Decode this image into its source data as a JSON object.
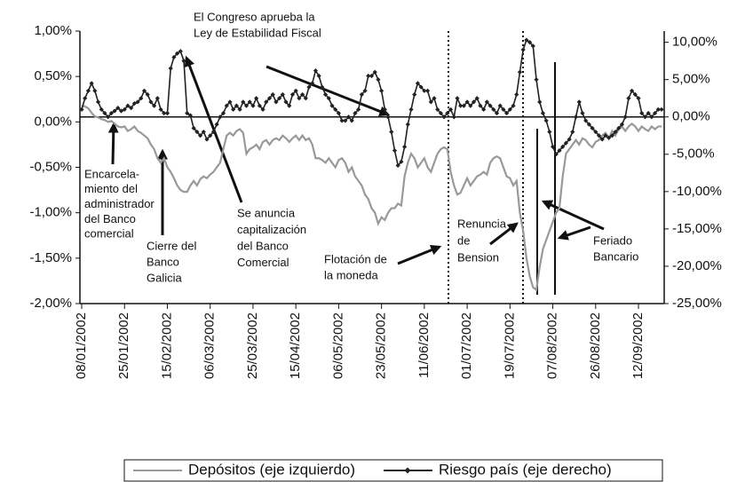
{
  "chart_data": {
    "type": "line",
    "categories": [
      "08/01/2002",
      null,
      null,
      null,
      null,
      null,
      null,
      null,
      null,
      null,
      null,
      null,
      null,
      "25/01/2002",
      null,
      null,
      null,
      null,
      null,
      null,
      null,
      null,
      null,
      null,
      null,
      null,
      "15/02/2002",
      null,
      null,
      null,
      null,
      null,
      null,
      null,
      null,
      null,
      null,
      null,
      null,
      "06/03/2002",
      null,
      null,
      null,
      null,
      null,
      null,
      null,
      null,
      null,
      null,
      null,
      null,
      "25/03/2002",
      null,
      null,
      null,
      null,
      null,
      null,
      null,
      null,
      null,
      null,
      null,
      null,
      "15/04/2002",
      null,
      null,
      null,
      null,
      null,
      null,
      null,
      null,
      null,
      null,
      null,
      null,
      "06/05/2002",
      null,
      null,
      null,
      null,
      null,
      null,
      null,
      null,
      null,
      null,
      null,
      null,
      "23/05/2002",
      null,
      null,
      null,
      null,
      null,
      null,
      null,
      null,
      null,
      null,
      null,
      null,
      "11/06/2002",
      null,
      null,
      null,
      null,
      null,
      null,
      null,
      null,
      null,
      null,
      null,
      null,
      "01/07/2002",
      null,
      null,
      null,
      null,
      null,
      null,
      null,
      null,
      null,
      null,
      null,
      null,
      "19/07/2002",
      null,
      null,
      null,
      null,
      null,
      null,
      null,
      null,
      null,
      null,
      null,
      null,
      "07/08/2002",
      null,
      null,
      null,
      null,
      null,
      null,
      null,
      null,
      null,
      null,
      null,
      null,
      "26/08/2002",
      null,
      null,
      null,
      null,
      null,
      null,
      null,
      null,
      null,
      null,
      null,
      null,
      "12/09/2002",
      null,
      null,
      null,
      null,
      null,
      null,
      null
    ],
    "series": [
      {
        "name": "Depósitos (eje izquierdo)",
        "color": "#999999",
        "axis": "y",
        "values": [
          0.18,
          0.17,
          0.15,
          0.1,
          0.06,
          0.05,
          0.03,
          0.02,
          0.0,
          0.01,
          -0.02,
          -0.05,
          -0.06,
          -0.05,
          -0.1,
          -0.08,
          -0.05,
          -0.1,
          -0.12,
          -0.15,
          -0.18,
          -0.25,
          -0.3,
          -0.4,
          -0.45,
          -0.4,
          -0.5,
          -0.55,
          -0.62,
          -0.7,
          -0.75,
          -0.77,
          -0.77,
          -0.7,
          -0.65,
          -0.7,
          -0.63,
          -0.6,
          -0.62,
          -0.58,
          -0.55,
          -0.5,
          -0.45,
          -0.3,
          -0.15,
          -0.12,
          -0.15,
          -0.1,
          -0.08,
          -0.12,
          -0.35,
          -0.3,
          -0.28,
          -0.25,
          -0.3,
          -0.22,
          -0.2,
          -0.25,
          -0.2,
          -0.18,
          -0.2,
          -0.15,
          -0.18,
          -0.22,
          -0.18,
          -0.15,
          -0.2,
          -0.15,
          -0.2,
          -0.18,
          -0.25,
          -0.4,
          -0.4,
          -0.42,
          -0.45,
          -0.4,
          -0.45,
          -0.5,
          -0.42,
          -0.4,
          -0.45,
          -0.55,
          -0.5,
          -0.6,
          -0.65,
          -0.7,
          -0.8,
          -0.85,
          -0.95,
          -1.0,
          -1.12,
          -1.05,
          -1.08,
          -1.0,
          -0.95,
          -0.95,
          -0.9,
          -0.92,
          -0.6,
          -0.45,
          -0.35,
          -0.4,
          -0.5,
          -0.45,
          -0.4,
          -0.5,
          -0.55,
          -0.45,
          -0.35,
          -0.3,
          -0.28,
          -0.3,
          -0.55,
          -0.7,
          -0.8,
          -0.78,
          -0.7,
          -0.62,
          -0.7,
          -0.65,
          -0.6,
          -0.58,
          -0.55,
          -0.58,
          -0.45,
          -0.4,
          -0.38,
          -0.4,
          -0.5,
          -0.6,
          -0.62,
          -0.7,
          -0.65,
          -1.0,
          -1.2,
          -1.5,
          -1.7,
          -1.82,
          -1.85,
          -1.6,
          -1.4,
          -1.3,
          -1.2,
          -1.1,
          -1.0,
          -0.95,
          -0.6,
          -0.35,
          -0.3,
          -0.25,
          -0.2,
          -0.25,
          -0.18,
          -0.2,
          -0.25,
          -0.28,
          -0.22,
          -0.2,
          -0.15,
          -0.12,
          -0.18,
          -0.1,
          -0.15,
          -0.08,
          -0.05,
          -0.1,
          -0.05,
          -0.02,
          -0.05,
          -0.1,
          -0.05,
          -0.08,
          -0.1,
          -0.05,
          -0.08,
          -0.05,
          -0.05
        ]
      },
      {
        "name": "Riesgo país (eje derecho)",
        "color": "#222222",
        "axis": "y2",
        "values": [
          1.0,
          2.5,
          3.5,
          4.5,
          3.5,
          2.0,
          1.0,
          0.5,
          0.0,
          0.5,
          0.8,
          1.2,
          0.8,
          1.0,
          1.5,
          1.2,
          1.8,
          2.0,
          2.5,
          3.5,
          3.0,
          2.0,
          1.5,
          2.5,
          1.0,
          0.5,
          0.5,
          6.5,
          8.0,
          8.5,
          8.8,
          7.5,
          0.5,
          0.2,
          -1.5,
          -2.0,
          -2.5,
          -2.0,
          -3.0,
          -2.5,
          -2.0,
          -1.0,
          0.0,
          0.5,
          1.5,
          2.0,
          1.0,
          1.5,
          1.0,
          2.0,
          1.5,
          2.0,
          1.5,
          2.5,
          1.5,
          1.0,
          2.0,
          2.5,
          3.0,
          2.0,
          2.5,
          3.0,
          2.0,
          1.5,
          3.0,
          3.5,
          2.5,
          3.0,
          2.5,
          4.0,
          4.5,
          6.2,
          5.5,
          4.0,
          3.0,
          2.5,
          1.5,
          1.0,
          0.5,
          -0.5,
          -0.5,
          0.0,
          -0.5,
          0.5,
          1.0,
          3.0,
          3.5,
          5.5,
          5.5,
          6.0,
          5.0,
          3.5,
          1.0,
          0.0,
          -2.0,
          -4.5,
          -6.5,
          -6.0,
          -4.0,
          -1.0,
          1.0,
          3.0,
          4.5,
          4.0,
          3.5,
          3.5,
          2.0,
          2.5,
          1.0,
          0.5,
          0.0,
          0.5,
          1.0,
          0.0,
          2.5,
          1.5,
          1.5,
          2.0,
          1.5,
          2.0,
          2.5,
          1.5,
          1.0,
          2.0,
          1.5,
          1.0,
          0.5,
          1.5,
          1.0,
          0.5,
          1.0,
          1.5,
          3.0,
          6.0,
          9.0,
          10.3,
          10.0,
          9.5,
          5.0,
          2.0,
          0.5,
          -0.5,
          -2.0,
          -4.0,
          -5.0,
          -4.5,
          -4.0,
          -3.5,
          -3.0,
          -2.0,
          0.0,
          2.0,
          0.5,
          -0.5,
          -1.0,
          -1.5,
          -2.0,
          -2.5,
          -3.0,
          -2.5,
          -2.8,
          -2.5,
          -2.0,
          -1.5,
          -1.0,
          0.0,
          2.5,
          3.5,
          3.0,
          2.5,
          0.5,
          0.0,
          0.5,
          0.0,
          0.5,
          1.0,
          1.0
        ]
      }
    ],
    "ylim": [
      -2,
      1
    ],
    "yticks": [
      {
        "value": -2,
        "label": "-2,00%"
      },
      {
        "value": -1.5,
        "label": "-1,50%"
      },
      {
        "value": -1,
        "label": "-1,00%"
      },
      {
        "value": -0.5,
        "label": "-0,50%"
      },
      {
        "value": 0,
        "label": "0,00%"
      },
      {
        "value": 0.5,
        "label": "0,50%"
      },
      {
        "value": 1,
        "label": "1,00%"
      }
    ],
    "y2lim": [
      -25,
      11.5
    ],
    "y2ticks": [
      {
        "value": -25,
        "label": "-25,00%"
      },
      {
        "value": -20,
        "label": "-20,00%"
      },
      {
        "value": -15,
        "label": "-15,00%"
      },
      {
        "value": -10,
        "label": "-10,00%"
      },
      {
        "value": -5,
        "label": "-5,00%"
      },
      {
        "value": 0,
        "label": "0,00%"
      },
      {
        "value": 5,
        "label": "5,00%"
      },
      {
        "value": 10,
        "label": "10,00%"
      }
    ],
    "grid": false,
    "legend": "bottom",
    "annotations": [
      [
        "El Congreso aprueba la",
        "Ley de Estabilidad Fiscal"
      ],
      [
        "Encarcela-",
        "miento del",
        "administrador",
        "del Banco",
        "comercial"
      ],
      [
        "Cierre del",
        "Banco",
        "Galicia"
      ],
      [
        "Se anuncia",
        "capitalización",
        "del Banco",
        "Comercial"
      ],
      [
        "Flotación de",
        "la moneda"
      ],
      [
        "Renuncia",
        "de",
        "Bension"
      ],
      [
        "Feriado",
        "Bancario"
      ]
    ]
  }
}
